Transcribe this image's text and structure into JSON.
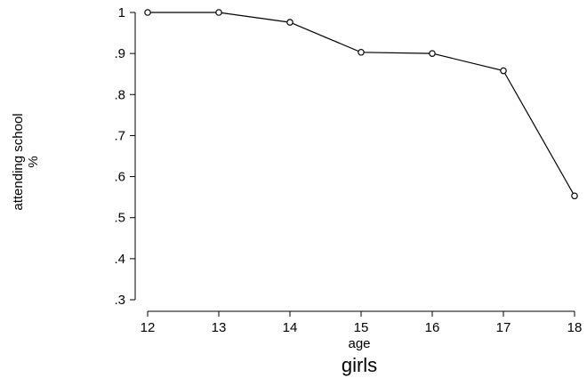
{
  "chart_data": {
    "type": "line",
    "title": "girls",
    "xlabel": "age",
    "ylabel_lines": [
      "attending school",
      "%"
    ],
    "x": [
      12,
      13,
      14,
      15,
      16,
      17,
      18
    ],
    "series": [
      {
        "values": [
          1.0,
          1.0,
          0.976,
          0.903,
          0.9,
          0.858,
          0.553
        ]
      }
    ],
    "xticks": [
      "12",
      "13",
      "14",
      "15",
      "16",
      "17",
      "18"
    ],
    "yticks": [
      {
        "value": 0.3,
        "label": ".3"
      },
      {
        "value": 0.4,
        "label": ".4"
      },
      {
        "value": 0.5,
        "label": ".5"
      },
      {
        "value": 0.6,
        "label": ".6"
      },
      {
        "value": 0.7,
        "label": ".7"
      },
      {
        "value": 0.8,
        "label": ".8"
      },
      {
        "value": 0.9,
        "label": ".9"
      },
      {
        "value": 1.0,
        "label": "1"
      }
    ],
    "xlim": [
      12,
      18
    ],
    "ylim": [
      0.3,
      1.0
    ],
    "grid": false,
    "marker": "hollow-circle",
    "line_color": "#000000"
  }
}
